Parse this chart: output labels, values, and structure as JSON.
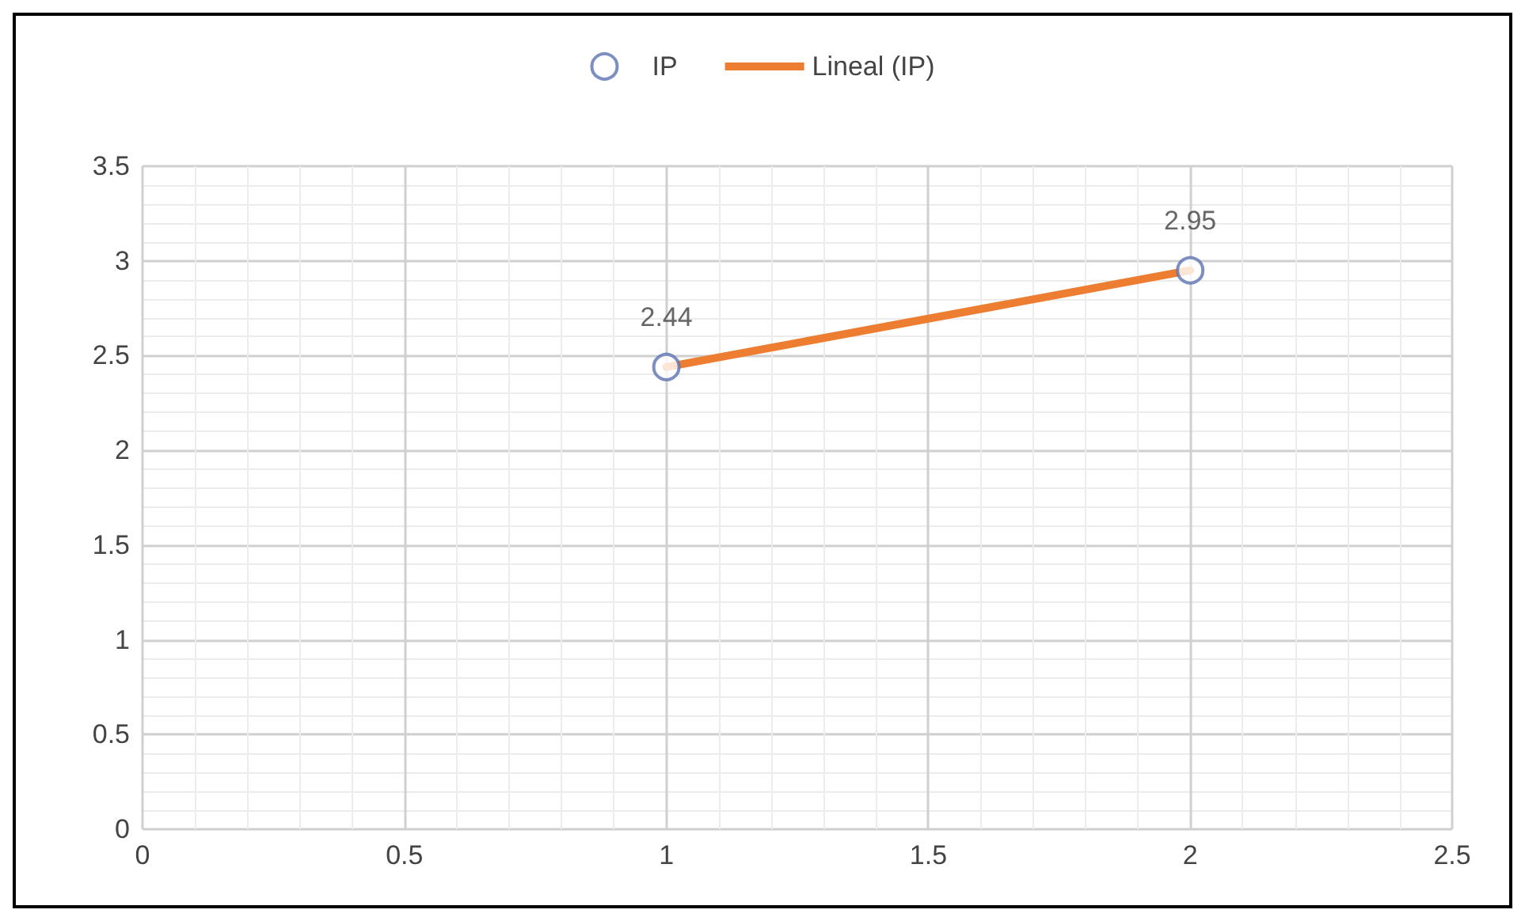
{
  "chart_data": {
    "type": "scatter",
    "legend": "top",
    "grid": true,
    "xlim": [
      0,
      2.5
    ],
    "xticks": [
      0,
      0.5,
      1,
      1.5,
      2,
      2.5
    ],
    "ylim": [
      0,
      3.5
    ],
    "yticks": [
      0,
      0.5,
      1,
      1.5,
      2,
      2.5,
      3,
      3.5
    ],
    "x": [
      1,
      2
    ],
    "series": [
      {
        "name": "IP",
        "marker": "circle",
        "color": "#5b73b0",
        "values": [
          2.44,
          2.95
        ],
        "value_labels": [
          "2.44",
          "2.95"
        ]
      },
      {
        "name": "Lineal (IP)",
        "type": "line",
        "marker": "none",
        "color": "#ed7d31",
        "values": [
          2.44,
          2.95
        ]
      }
    ]
  }
}
